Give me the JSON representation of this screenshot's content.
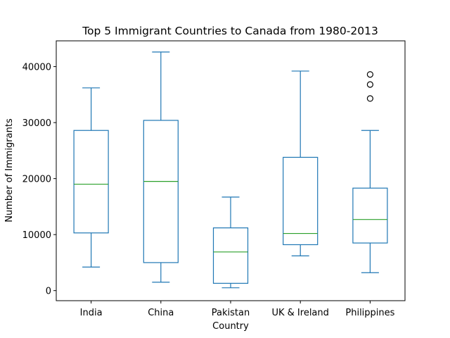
{
  "chart_data": {
    "type": "box",
    "title": "Top 5 Immigrant Countries to Canada from 1980-2013",
    "xlabel": "Country",
    "ylabel": "Number of Immigrants",
    "ylim": [
      -1800,
      44600
    ],
    "yticks": [
      0,
      10000,
      20000,
      30000,
      40000
    ],
    "ytick_labels": [
      "0",
      "10000",
      "20000",
      "30000",
      "40000"
    ],
    "grid": false,
    "colors": {
      "box": "#1f77b4",
      "median": "#2ca02c",
      "outlier": "#000000"
    },
    "categories": [
      "India",
      "China",
      "Pakistan",
      "UK & Ireland",
      "Philippines"
    ],
    "boxes": [
      {
        "name": "India",
        "whisker_low": 4200,
        "q1": 10300,
        "median": 19000,
        "q3": 28600,
        "whisker_high": 36200,
        "outliers": []
      },
      {
        "name": "China",
        "whisker_low": 1500,
        "q1": 5000,
        "median": 19500,
        "q3": 30400,
        "whisker_high": 42600,
        "outliers": []
      },
      {
        "name": "Pakistan",
        "whisker_low": 500,
        "q1": 1300,
        "median": 6900,
        "q3": 11200,
        "whisker_high": 16700,
        "outliers": []
      },
      {
        "name": "UK & Ireland",
        "whisker_low": 6200,
        "q1": 8200,
        "median": 10200,
        "q3": 23800,
        "whisker_high": 39200,
        "outliers": []
      },
      {
        "name": "Philippines",
        "whisker_low": 3200,
        "q1": 8500,
        "median": 12700,
        "q3": 18300,
        "whisker_high": 28600,
        "outliers": [
          34300,
          36800,
          38600
        ]
      }
    ]
  }
}
